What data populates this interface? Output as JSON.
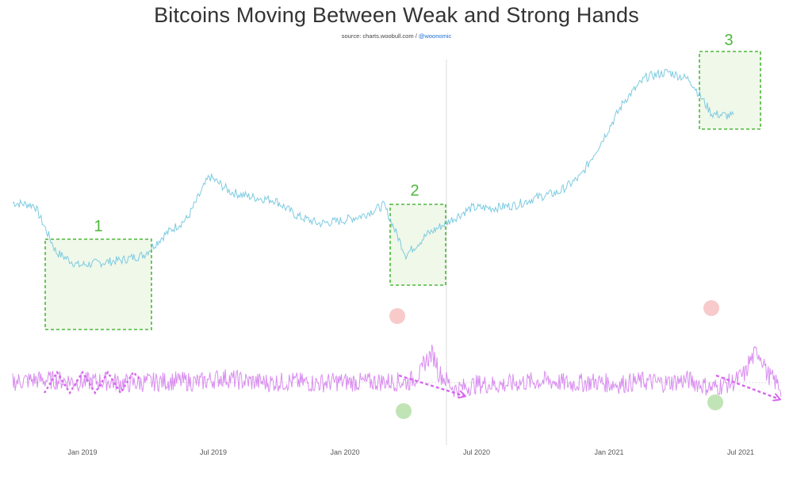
{
  "title": "Bitcoins Moving Between Weak and Strong Hands",
  "subtitle": {
    "source": "source: charts.woobull.com / ",
    "handle": "@woonomic"
  },
  "colors": {
    "price": "#7ecbe0",
    "oscillator": "#d98ef0",
    "box_stroke": "#4cb83a",
    "box_fill": "#f0f8ea",
    "arrow": "#d865f0",
    "peak_marker": "#f7c1c1",
    "trough_marker": "#b6dfa9",
    "label": "#4cb83a"
  },
  "chart_data": {
    "type": "line",
    "x_tick_labels": [
      "Jan 2019",
      "Jul 2019",
      "Jan 2020",
      "Jul 2020",
      "Jan 2021",
      "Jul 2021"
    ],
    "series": [
      {
        "x": [
          "2018-09",
          "2018-10",
          "2018-11",
          "2018-12",
          "2019-01",
          "2019-02",
          "2019-03",
          "2019-04",
          "2019-05",
          "2019-06",
          "2019-07",
          "2019-08",
          "2019-09",
          "2019-10",
          "2019-11",
          "2019-12",
          "2020-01",
          "2020-02",
          "2020-03",
          "2020-04",
          "2020-05",
          "2020-06",
          "2020-07",
          "2020-08",
          "2020-09",
          "2020-10",
          "2020-11",
          "2020-12",
          "2021-01",
          "2021-02",
          "2021-03",
          "2021-04",
          "2021-05",
          "2021-06"
        ],
        "relative_level": [
          0.54,
          0.53,
          0.35,
          0.3,
          0.31,
          0.32,
          0.34,
          0.42,
          0.48,
          0.64,
          0.58,
          0.56,
          0.55,
          0.49,
          0.46,
          0.47,
          0.49,
          0.53,
          0.34,
          0.42,
          0.47,
          0.52,
          0.52,
          0.53,
          0.56,
          0.58,
          0.64,
          0.78,
          0.93,
          1.02,
          1.04,
          1.01,
          0.88,
          0.87
        ]
      },
      {
        "x": [
          "2018-09",
          "2018-10",
          "2018-11",
          "2018-12",
          "2019-01",
          "2019-02",
          "2019-03",
          "2019-04",
          "2019-05",
          "2019-06",
          "2019-07",
          "2019-08",
          "2019-09",
          "2019-10",
          "2019-11",
          "2019-12",
          "2020-01",
          "2020-02",
          "2020-03",
          "2020-04",
          "2020-05",
          "2020-06",
          "2020-07",
          "2020-08",
          "2020-09",
          "2020-10",
          "2020-11",
          "2020-12",
          "2021-01",
          "2021-02",
          "2021-03",
          "2021-04",
          "2021-05",
          "2021-06"
        ],
        "relative_level": [
          0.03,
          0.1,
          0.08,
          0.02,
          0.05,
          -0.03,
          0.02,
          0.06,
          0.01,
          0.18,
          0.05,
          0.0,
          0.04,
          -0.02,
          0.03,
          0.01,
          0.04,
          0.02,
          0.62,
          -0.25,
          -0.05,
          -0.08,
          0.02,
          0.06,
          -0.04,
          0.03,
          -0.06,
          0.05,
          -0.02,
          0.1,
          -0.2,
          0.03,
          0.68,
          -0.2
        ]
      }
    ],
    "annotations": [
      {
        "label": "1"
      },
      {
        "label": "2"
      },
      {
        "label": "3"
      }
    ]
  }
}
